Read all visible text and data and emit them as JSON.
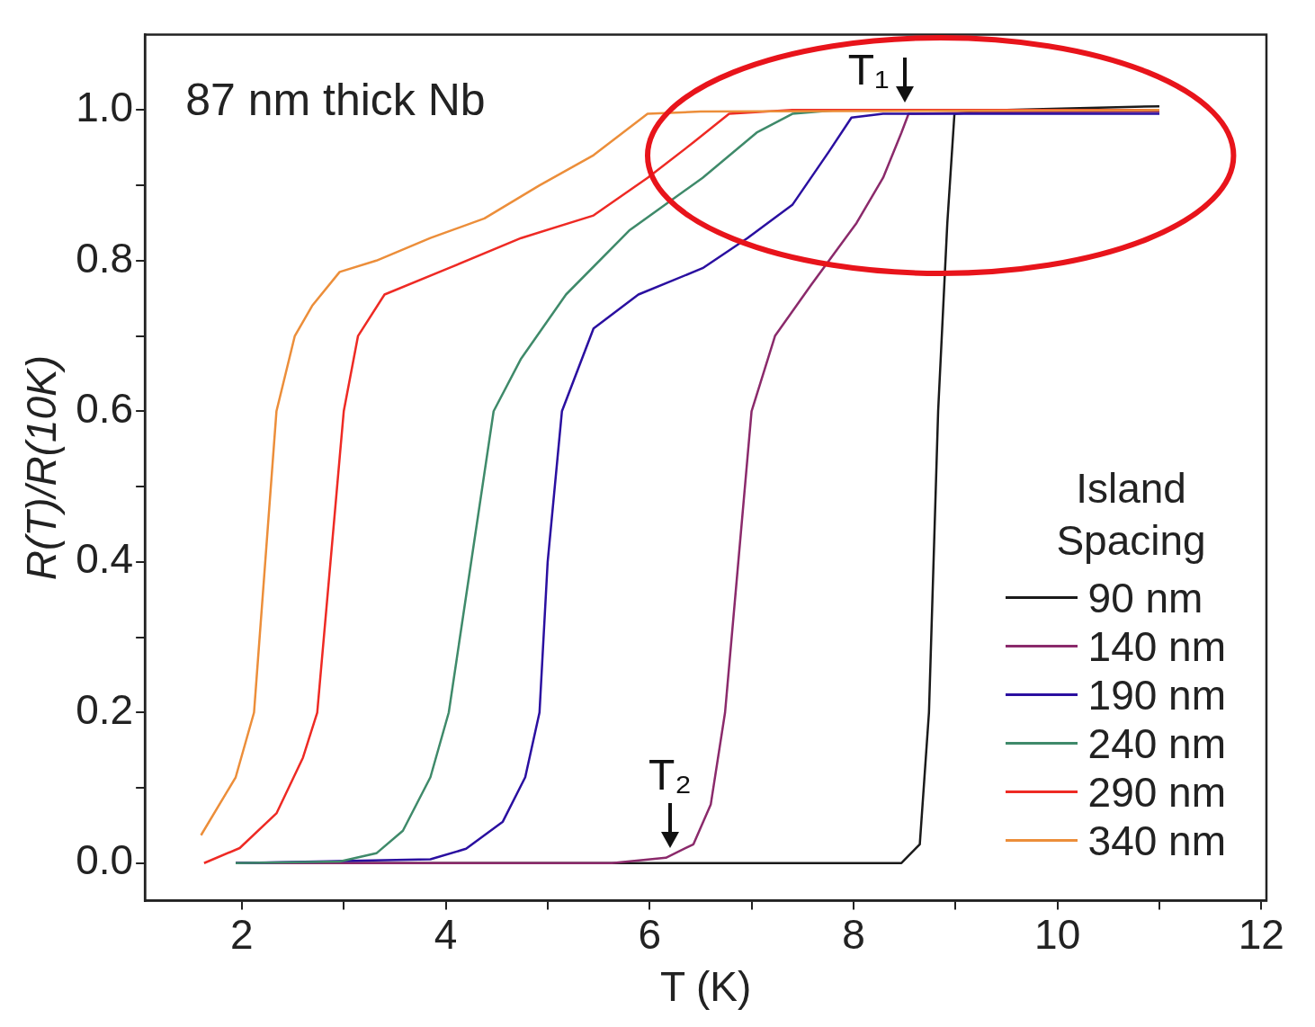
{
  "chart_data": {
    "type": "line",
    "title": "87 nm thick Nb",
    "xlabel": "T (K)",
    "ylabel": "R(T)/R(10K)",
    "legend_title": "Island Spacing",
    "xlim": [
      1.05,
      12.05
    ],
    "xticks": [
      2,
      {
        "value": 3,
        "label": null
      },
      4,
      {
        "value": 5,
        "label": null
      },
      6,
      {
        "value": 7,
        "label": null
      },
      8,
      {
        "value": 9,
        "label": null
      },
      10,
      {
        "value": 11,
        "label": null
      },
      12
    ],
    "ylim": [
      -0.05,
      1.1
    ],
    "yticks": [
      {
        "value": 0,
        "label": "0.0"
      },
      {
        "value": 0.1,
        "label": null
      },
      0.2,
      {
        "value": 0.3,
        "label": null
      },
      0.4,
      {
        "value": 0.5,
        "label": null
      },
      0.6,
      {
        "value": 0.7,
        "label": null
      },
      0.8,
      {
        "value": 0.9,
        "label": null
      },
      {
        "value": 1,
        "label": "1.0"
      }
    ],
    "grid": false,
    "legend": "bottom right",
    "marker": "none",
    "line_style": "solid",
    "annotations": [
      {
        "text": "T₁",
        "x": 8.5,
        "y": 1.0
      },
      {
        "text": "T₂",
        "x": 6.2,
        "y": 0.01
      }
    ],
    "series": [
      {
        "name": "90 nm",
        "color": "#1a1a1a",
        "x": [
          1.94,
          4,
          6,
          8,
          8.47,
          8.65,
          8.74,
          8.83,
          8.92,
          8.99,
          9.5,
          11
        ],
        "values": [
          0,
          0,
          0,
          0,
          0,
          0.025,
          0.2,
          0.6,
          0.85,
          0.995,
          1.0,
          1.005
        ]
      },
      {
        "name": "140 nm",
        "color": "#8b2a6b",
        "x": [
          1.94,
          4,
          5.63,
          6.16,
          6.43,
          6.6,
          6.74,
          6.87,
          7.0,
          7.23,
          7.58,
          8.03,
          8.29,
          8.47,
          8.54,
          9.5,
          11
        ],
        "values": [
          0,
          0,
          0,
          0.007,
          0.025,
          0.078,
          0.2,
          0.4,
          0.6,
          0.7,
          0.767,
          0.85,
          0.91,
          0.97,
          0.995,
          0.997,
          0.998
        ]
      },
      {
        "name": "190 nm",
        "color": "#2a0fa0",
        "x": [
          1.94,
          3.85,
          4.2,
          4.56,
          4.78,
          4.92,
          5.0,
          5.14,
          5.45,
          5.89,
          6.52,
          6.96,
          7.4,
          7.76,
          7.98,
          8.29,
          11
        ],
        "values": [
          0,
          0.005,
          0.019,
          0.055,
          0.114,
          0.2,
          0.4,
          0.6,
          0.71,
          0.755,
          0.79,
          0.83,
          0.874,
          0.945,
          0.99,
          0.995,
          0.995
        ]
      },
      {
        "name": "240 nm",
        "color": "#3f8a6a",
        "x": [
          1.94,
          2.96,
          3.32,
          3.58,
          3.85,
          4.03,
          4.25,
          4.47,
          4.74,
          5.18,
          5.8,
          6.52,
          7.05,
          7.4,
          7.85,
          11
        ],
        "values": [
          0,
          0.002,
          0.013,
          0.043,
          0.114,
          0.2,
          0.4,
          0.6,
          0.67,
          0.755,
          0.84,
          0.91,
          0.97,
          0.995,
          1.0,
          1.0
        ]
      },
      {
        "name": "290 nm",
        "color": "#ee2a24",
        "x": [
          1.63,
          1.98,
          2.34,
          2.6,
          2.74,
          2.87,
          3.0,
          3.14,
          3.4,
          4.03,
          4.74,
          5.45,
          5.98,
          6.43,
          6.78,
          7.4,
          11
        ],
        "values": [
          0,
          0.02,
          0.066,
          0.14,
          0.2,
          0.4,
          0.6,
          0.7,
          0.755,
          0.79,
          0.83,
          0.86,
          0.91,
          0.957,
          0.995,
          1.0,
          1.0
        ]
      },
      {
        "name": "340 nm",
        "color": "#ec8e3a",
        "x": [
          1.6,
          1.94,
          2.12,
          2.23,
          2.34,
          2.52,
          2.69,
          2.96,
          3.32,
          3.85,
          4.38,
          4.92,
          5.45,
          5.98,
          6.5,
          11
        ],
        "values": [
          0.037,
          0.114,
          0.2,
          0.4,
          0.6,
          0.7,
          0.74,
          0.785,
          0.8,
          0.83,
          0.856,
          0.9,
          0.94,
          0.995,
          0.998,
          1.0
        ]
      }
    ]
  }
}
